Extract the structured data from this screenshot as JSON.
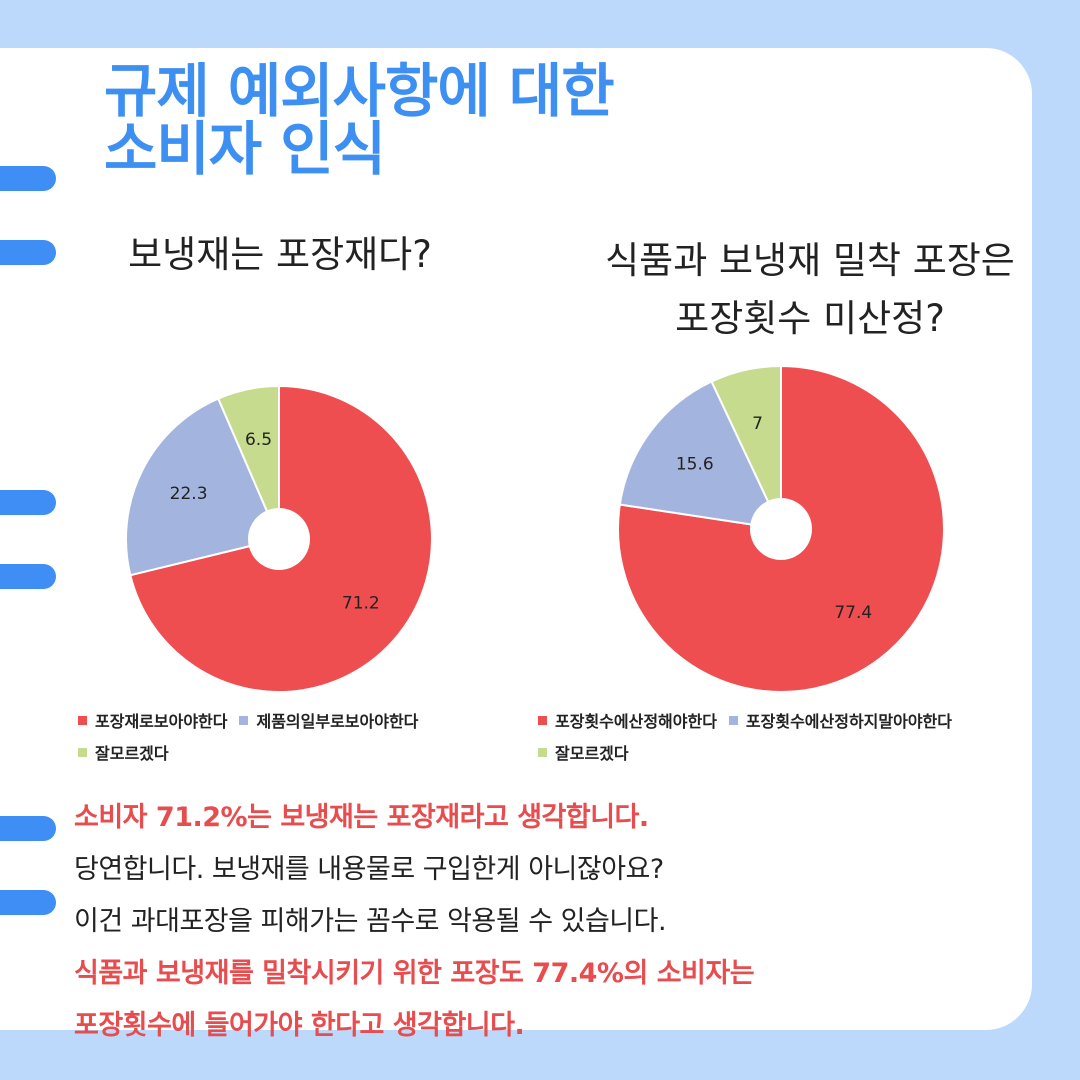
{
  "title": [
    "규제 예외사항에 대한",
    "소비자 인식"
  ],
  "colors": {
    "red": "#ef4e51",
    "blue": "#a3b5de",
    "green": "#c6db8e",
    "title": "#3d8ff1",
    "accent_text": "#e74c4e"
  },
  "chart_data": [
    {
      "type": "pie",
      "title": "보냉재는 포장재다?",
      "categories": [
        "포장재로보아야한다",
        "제품의일부로보아야한다",
        "잘모르겠다"
      ],
      "values": [
        71.2,
        22.3,
        6.5
      ],
      "labels": [
        "71.2",
        "22.3",
        "6.5"
      ],
      "colors": [
        "#ef4e51",
        "#a3b5de",
        "#c6db8e"
      ],
      "legend": "bottom"
    },
    {
      "type": "pie",
      "title": [
        "식품과 보냉재 밀착 포장은",
        "포장횟수 미산정?"
      ],
      "categories": [
        "포장횟수에산정해야한다",
        "포장횟수에산정하지말아야한다",
        "잘모르겠다"
      ],
      "values": [
        77.4,
        15.6,
        7
      ],
      "labels": [
        "77.4",
        "15.6",
        "7"
      ],
      "colors": [
        "#ef4e51",
        "#a3b5de",
        "#c6db8e"
      ],
      "legend": "bottom"
    }
  ],
  "body_lines": [
    {
      "text": "소비자 71.2%는 보냉재는 포장재라고 생각합니다.",
      "style": "red"
    },
    {
      "text": "당연합니다. 보냉재를 내용물로 구입한게 아니잖아요?",
      "style": "dark"
    },
    {
      "text": "이건 과대포장을 피해가는 꼼수로 악용될 수 있습니다.",
      "style": "dark"
    },
    {
      "text": "식품과 보냉재를 밀착시키기 위한 포장도 77.4%의 소비자는",
      "style": "red"
    },
    {
      "text": "포장횟수에 들어가야 한다고 생각합니다.",
      "style": "red"
    }
  ]
}
